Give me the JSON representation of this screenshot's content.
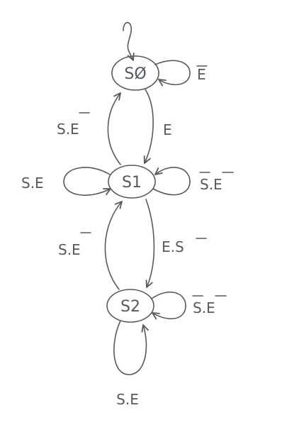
{
  "states": {
    "s0": "SØ",
    "s1": "S1",
    "s2": "S2"
  },
  "transitions": {
    "s0_self": "E",
    "s0_to_s1": "E",
    "s1_to_s0": "S.E",
    "s1_self_left": "S.E",
    "s1_self_right": "S.E",
    "s1_to_s2": "E.S",
    "s2_to_s1": "S.E",
    "s2_self_right": "S.E",
    "s2_self_bottom": "S.E"
  },
  "colors": {
    "ink": "#555a5e",
    "background": "#ffffff"
  }
}
